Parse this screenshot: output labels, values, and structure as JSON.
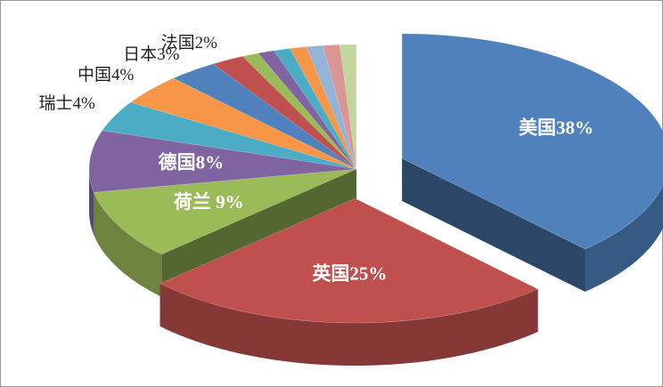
{
  "chart_data": {
    "type": "pie3d",
    "labels": [
      "美国38%",
      "英国25%",
      "荷兰 9%",
      "德国8%",
      "瑞士4%",
      "中国4%",
      "日本3%",
      "法国2%",
      null,
      null,
      null,
      null,
      null,
      null,
      null
    ],
    "values": [
      38,
      25,
      9,
      8,
      4,
      4,
      3,
      2,
      1,
      1,
      1,
      1,
      1,
      1,
      1
    ],
    "colors": [
      "#4f81bd",
      "#c0504d",
      "#9bbb59",
      "#8064a2",
      "#4bacc6",
      "#f79646",
      "#4f81bd",
      "#c0504d",
      "#9bbb59",
      "#8064a2",
      "#4bacc6",
      "#f79646",
      "#95b3d7",
      "#d99694",
      "#c3d69b"
    ],
    "exploded": [
      0,
      1
    ]
  }
}
